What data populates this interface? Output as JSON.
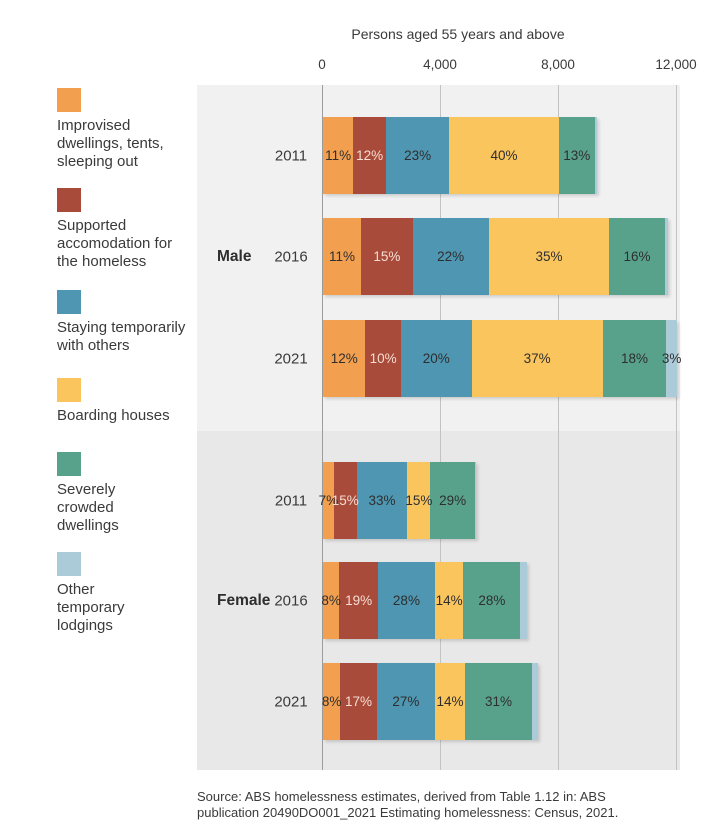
{
  "title": "Persons aged 55 years and above",
  "source": "Source: ABS homelessness estimates, derived from Table 1.12 in: ABS\npublication 20490DO001_2021 Estimating homelessness: Census, 2021.",
  "colors": {
    "improvised": "#F2A04F",
    "supported": "#A84B3A",
    "staying": "#4E96B1",
    "boarding": "#FBC55D",
    "crowded": "#58A28C",
    "other": "#ABCBD9",
    "male_section_bg": "#F1F1F1",
    "female_section_bg": "#E8E8E8",
    "gridline": "#C3C3C3",
    "axis_zero_line": "#9C9C9C",
    "label_dark": "#2E2E2E",
    "label_on_red": "#F7DDD3"
  },
  "legend": [
    {
      "key": "improvised",
      "label": "Improvised\ndwellings, tents,\nsleeping out"
    },
    {
      "key": "supported",
      "label": "Supported\naccomodation for\nthe homeless"
    },
    {
      "key": "staying",
      "label": "Staying temporarily\nwith others"
    },
    {
      "key": "boarding",
      "label": "Boarding houses"
    },
    {
      "key": "crowded",
      "label": "Severely\ncrowded\ndwellings"
    },
    {
      "key": "other",
      "label": "Other\ntemporary\nlodgings"
    }
  ],
  "chart_data": {
    "type": "bar",
    "variant": "stacked-horizontal",
    "title": "Persons aged 55 years and above",
    "x_axis": {
      "ticks": [
        0,
        4000,
        8000,
        12000
      ],
      "tick_labels": [
        "0",
        "4,000",
        "8,000",
        "12,000"
      ],
      "max": 12000
    },
    "categories": [
      "Improvised dwellings, tents, sleeping out",
      "Supported accomodation for the homeless",
      "Staying temporarily with others",
      "Boarding houses",
      "Severely crowded dwellings",
      "Other temporary lodgings"
    ],
    "category_keys": [
      "improvised",
      "supported",
      "staying",
      "boarding",
      "crowded",
      "other"
    ],
    "groups": [
      {
        "label": "Male",
        "rows": [
          {
            "year": "2011",
            "total_persons_approx": 9300,
            "pct": [
              11,
              12,
              23,
              40,
              13,
              1
            ],
            "labels_shown": [
              true,
              true,
              true,
              true,
              true,
              false
            ]
          },
          {
            "year": "2016",
            "total_persons_approx": 11700,
            "pct": [
              11,
              15,
              22,
              35,
              16,
              1
            ],
            "labels_shown": [
              true,
              true,
              true,
              true,
              true,
              false
            ]
          },
          {
            "year": "2021",
            "total_persons_approx": 12000,
            "pct": [
              12,
              10,
              20,
              37,
              18,
              3
            ],
            "labels_shown": [
              true,
              true,
              true,
              true,
              true,
              true
            ]
          }
        ]
      },
      {
        "label": "Female",
        "rows": [
          {
            "year": "2011",
            "total_persons_approx": 5200,
            "pct": [
              7,
              15,
              33,
              15,
              29,
              1
            ],
            "labels_shown": [
              true,
              true,
              true,
              true,
              true,
              false
            ]
          },
          {
            "year": "2016",
            "total_persons_approx": 6900,
            "pct": [
              8,
              19,
              28,
              14,
              28,
              3
            ],
            "labels_shown": [
              true,
              true,
              true,
              true,
              true,
              false
            ]
          },
          {
            "year": "2021",
            "total_persons_approx": 7300,
            "pct": [
              8,
              17,
              27,
              14,
              31,
              3
            ],
            "labels_shown": [
              true,
              true,
              true,
              true,
              true,
              false
            ]
          }
        ]
      }
    ]
  }
}
